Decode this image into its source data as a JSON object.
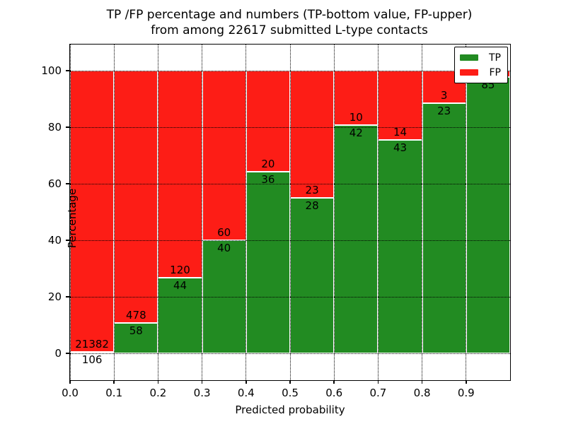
{
  "title": {
    "line1": "TP /FP percentage and numbers (TP-bottom value, FP-upper)",
    "line2": "from among 22617 submitted L-type contacts"
  },
  "axes": {
    "xlabel": "Predicted probability",
    "ylabel": "Percentage",
    "xtick_labels": [
      "0.0",
      "0.1",
      "0.2",
      "0.3",
      "0.4",
      "0.5",
      "0.6",
      "0.7",
      "0.8",
      "0.9"
    ],
    "ytick_labels": [
      "0",
      "20",
      "40",
      "60",
      "80",
      "100"
    ],
    "ytick_values": [
      0,
      20,
      40,
      60,
      80,
      100
    ]
  },
  "legend": {
    "items": [
      {
        "label": "TP",
        "color": "#228b22"
      },
      {
        "label": "FP",
        "color": "#fd1d16"
      }
    ]
  },
  "chart_data": {
    "type": "bar",
    "stacked": true,
    "normalized_to_percent": true,
    "title": "TP /FP percentage and numbers (TP-bottom value, FP-upper) from among 22617 submitted L-type contacts",
    "xlabel": "Predicted probability",
    "ylabel": "Percentage",
    "total_contacts": 22617,
    "bin_edges": [
      0.0,
      0.1,
      0.2,
      0.3,
      0.4,
      0.5,
      0.6,
      0.7,
      0.8,
      0.9,
      1.0
    ],
    "categories": [
      "0.0-0.1",
      "0.1-0.2",
      "0.2-0.3",
      "0.3-0.4",
      "0.4-0.5",
      "0.5-0.6",
      "0.6-0.7",
      "0.7-0.8",
      "0.8-0.9",
      "0.9-1.0"
    ],
    "series": [
      {
        "name": "TP",
        "color": "#228b22",
        "counts": [
          106,
          58,
          44,
          40,
          36,
          28,
          42,
          43,
          23,
          85
        ]
      },
      {
        "name": "FP",
        "color": "#fd1d16",
        "counts": [
          21382,
          478,
          120,
          60,
          20,
          23,
          10,
          14,
          3,
          2
        ]
      }
    ],
    "tp_percent": [
      0.49,
      10.82,
      26.83,
      40.0,
      64.29,
      54.9,
      80.77,
      75.44,
      88.46,
      97.7
    ],
    "bar_label_visible_fp": [
      "21382",
      "478",
      "120",
      "60",
      "20",
      "23",
      "10",
      "14",
      "3",
      ""
    ],
    "bar_label_visible_tp": [
      "106",
      "58",
      "44",
      "40",
      "36",
      "28",
      "42",
      "43",
      "23",
      "85"
    ],
    "xlim": [
      0.0,
      1.0
    ],
    "ylim": [
      -10,
      110
    ],
    "grid": "dotted-black-on-top",
    "legend_position": "upper right",
    "bar_edge_color": "#ffffff"
  },
  "style": {
    "tp_color": "#228b22",
    "fp_color": "#fd1d16",
    "background": "#ffffff"
  }
}
